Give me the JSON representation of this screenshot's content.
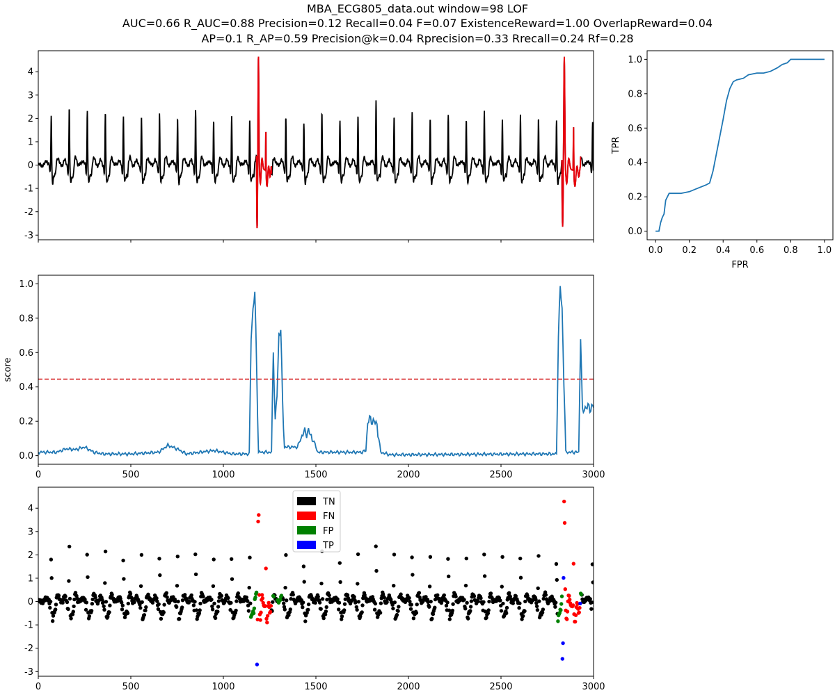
{
  "header": {
    "line1": "MBA_ECG805_data.out    window=98   LOF",
    "line2": "AUC=0.66     R_AUC=0.88     Precision=0.12     Recall=0.04     F=0.07     ExistenceReward=1.00   OverlapReward=0.04",
    "line3": "AP=0.1     R_AP=0.59     Precision@k=0.04     Rprecision=0.33     Rrecall=0.24     Rf=0.28"
  },
  "colors": {
    "signal": "#000000",
    "anomaly": "#e8000b",
    "score": "#1f77b4",
    "threshold": "#d62728",
    "tn": "#000000",
    "fn": "#ff0000",
    "fp": "#008000",
    "tp": "#0000ff"
  },
  "chart_data": [
    {
      "type": "line",
      "name": "signal",
      "xlim": [
        0,
        3000
      ],
      "ylim": [
        -3.2,
        4.9
      ],
      "yticks": [
        -3,
        -2,
        -1,
        0,
        1,
        2,
        3,
        4
      ],
      "xticks": [
        0,
        500,
        1000,
        1500,
        2000,
        2500,
        3000
      ],
      "show_x_ticklabels": false,
      "beat_period": 97.5,
      "first_beat": 70,
      "peaks": [
        2.25,
        2.55,
        2.45,
        2.25,
        2.15,
        2.1,
        2.3,
        2.15,
        2.45,
        2.05,
        2.1,
        2.05,
        2.3,
        2.15,
        1.9,
        2.35,
        2.05,
        2.15,
        2.85,
        2.1,
        2.35,
        2.1,
        2.25,
        2.1,
        2.35,
        2.1,
        2.15,
        2.1,
        2.0,
        2.0,
        2.0,
        2.0
      ],
      "anomaly_ranges": [
        [
          1180,
          1260
        ],
        [
          2830,
          2930
        ]
      ],
      "anomaly_extremes": [
        {
          "min": -2.8,
          "max": 4.6
        },
        {
          "min": -2.7,
          "max": 4.5
        }
      ]
    },
    {
      "type": "line",
      "name": "roc",
      "xlabel": "FPR",
      "ylabel": "TPR",
      "xlim": [
        -0.05,
        1.05
      ],
      "ylim": [
        -0.05,
        1.05
      ],
      "xticks": [
        0.0,
        0.2,
        0.4,
        0.6,
        0.8,
        1.0
      ],
      "yticks": [
        0.0,
        0.2,
        0.4,
        0.6,
        0.8,
        1.0
      ],
      "points": [
        [
          0.0,
          0.0
        ],
        [
          0.02,
          0.0
        ],
        [
          0.03,
          0.05
        ],
        [
          0.04,
          0.08
        ],
        [
          0.05,
          0.1
        ],
        [
          0.06,
          0.18
        ],
        [
          0.08,
          0.22
        ],
        [
          0.15,
          0.22
        ],
        [
          0.2,
          0.23
        ],
        [
          0.25,
          0.25
        ],
        [
          0.3,
          0.27
        ],
        [
          0.32,
          0.28
        ],
        [
          0.34,
          0.35
        ],
        [
          0.38,
          0.55
        ],
        [
          0.4,
          0.65
        ],
        [
          0.42,
          0.76
        ],
        [
          0.44,
          0.83
        ],
        [
          0.46,
          0.87
        ],
        [
          0.48,
          0.88
        ],
        [
          0.52,
          0.89
        ],
        [
          0.55,
          0.91
        ],
        [
          0.6,
          0.92
        ],
        [
          0.64,
          0.92
        ],
        [
          0.68,
          0.93
        ],
        [
          0.72,
          0.95
        ],
        [
          0.75,
          0.97
        ],
        [
          0.78,
          0.98
        ],
        [
          0.8,
          1.0
        ],
        [
          1.0,
          1.0
        ]
      ]
    },
    {
      "type": "line",
      "name": "score",
      "ylabel": "score",
      "xlim": [
        0,
        3000
      ],
      "ylim": [
        -0.05,
        1.05
      ],
      "yticks": [
        0.0,
        0.2,
        0.4,
        0.6,
        0.8,
        1.0
      ],
      "xticks": [
        0,
        500,
        1000,
        1500,
        2000,
        2500,
        3000
      ],
      "threshold": 0.445,
      "points": [
        [
          0,
          0.02
        ],
        [
          100,
          0.02
        ],
        [
          150,
          0.04
        ],
        [
          200,
          0.035
        ],
        [
          250,
          0.05
        ],
        [
          300,
          0.02
        ],
        [
          350,
          0.01
        ],
        [
          500,
          0.01
        ],
        [
          650,
          0.02
        ],
        [
          700,
          0.06
        ],
        [
          750,
          0.04
        ],
        [
          800,
          0.01
        ],
        [
          950,
          0.03
        ],
        [
          1000,
          0.02
        ],
        [
          1050,
          0.01
        ],
        [
          1140,
          0.01
        ],
        [
          1150,
          0.7
        ],
        [
          1160,
          0.85
        ],
        [
          1170,
          0.95
        ],
        [
          1180,
          0.5
        ],
        [
          1190,
          0.02
        ],
        [
          1260,
          0.02
        ],
        [
          1270,
          0.62
        ],
        [
          1280,
          0.2
        ],
        [
          1290,
          0.35
        ],
        [
          1300,
          0.7
        ],
        [
          1310,
          0.75
        ],
        [
          1320,
          0.3
        ],
        [
          1330,
          0.05
        ],
        [
          1400,
          0.05
        ],
        [
          1430,
          0.13
        ],
        [
          1460,
          0.14
        ],
        [
          1490,
          0.08
        ],
        [
          1510,
          0.02
        ],
        [
          1750,
          0.02
        ],
        [
          1770,
          0.03
        ],
        [
          1780,
          0.2
        ],
        [
          1800,
          0.21
        ],
        [
          1830,
          0.18
        ],
        [
          1850,
          0.02
        ],
        [
          1900,
          0.005
        ],
        [
          2700,
          0.01
        ],
        [
          2800,
          0.01
        ],
        [
          2810,
          0.7
        ],
        [
          2820,
          0.98
        ],
        [
          2830,
          0.85
        ],
        [
          2850,
          0.02
        ],
        [
          2920,
          0.02
        ],
        [
          2930,
          0.7
        ],
        [
          2940,
          0.25
        ],
        [
          2950,
          0.28
        ],
        [
          3000,
          0.28
        ]
      ]
    },
    {
      "type": "scatter",
      "name": "classification",
      "xlim": [
        0,
        3000
      ],
      "ylim": [
        -3.2,
        4.9
      ],
      "yticks": [
        -3,
        -2,
        -1,
        0,
        1,
        2,
        3,
        4
      ],
      "xticks": [
        0,
        500,
        1000,
        1500,
        2000,
        2500,
        3000
      ],
      "legend": [
        "TN",
        "FN",
        "FP",
        "TP"
      ],
      "legend_position": "top-center"
    }
  ]
}
